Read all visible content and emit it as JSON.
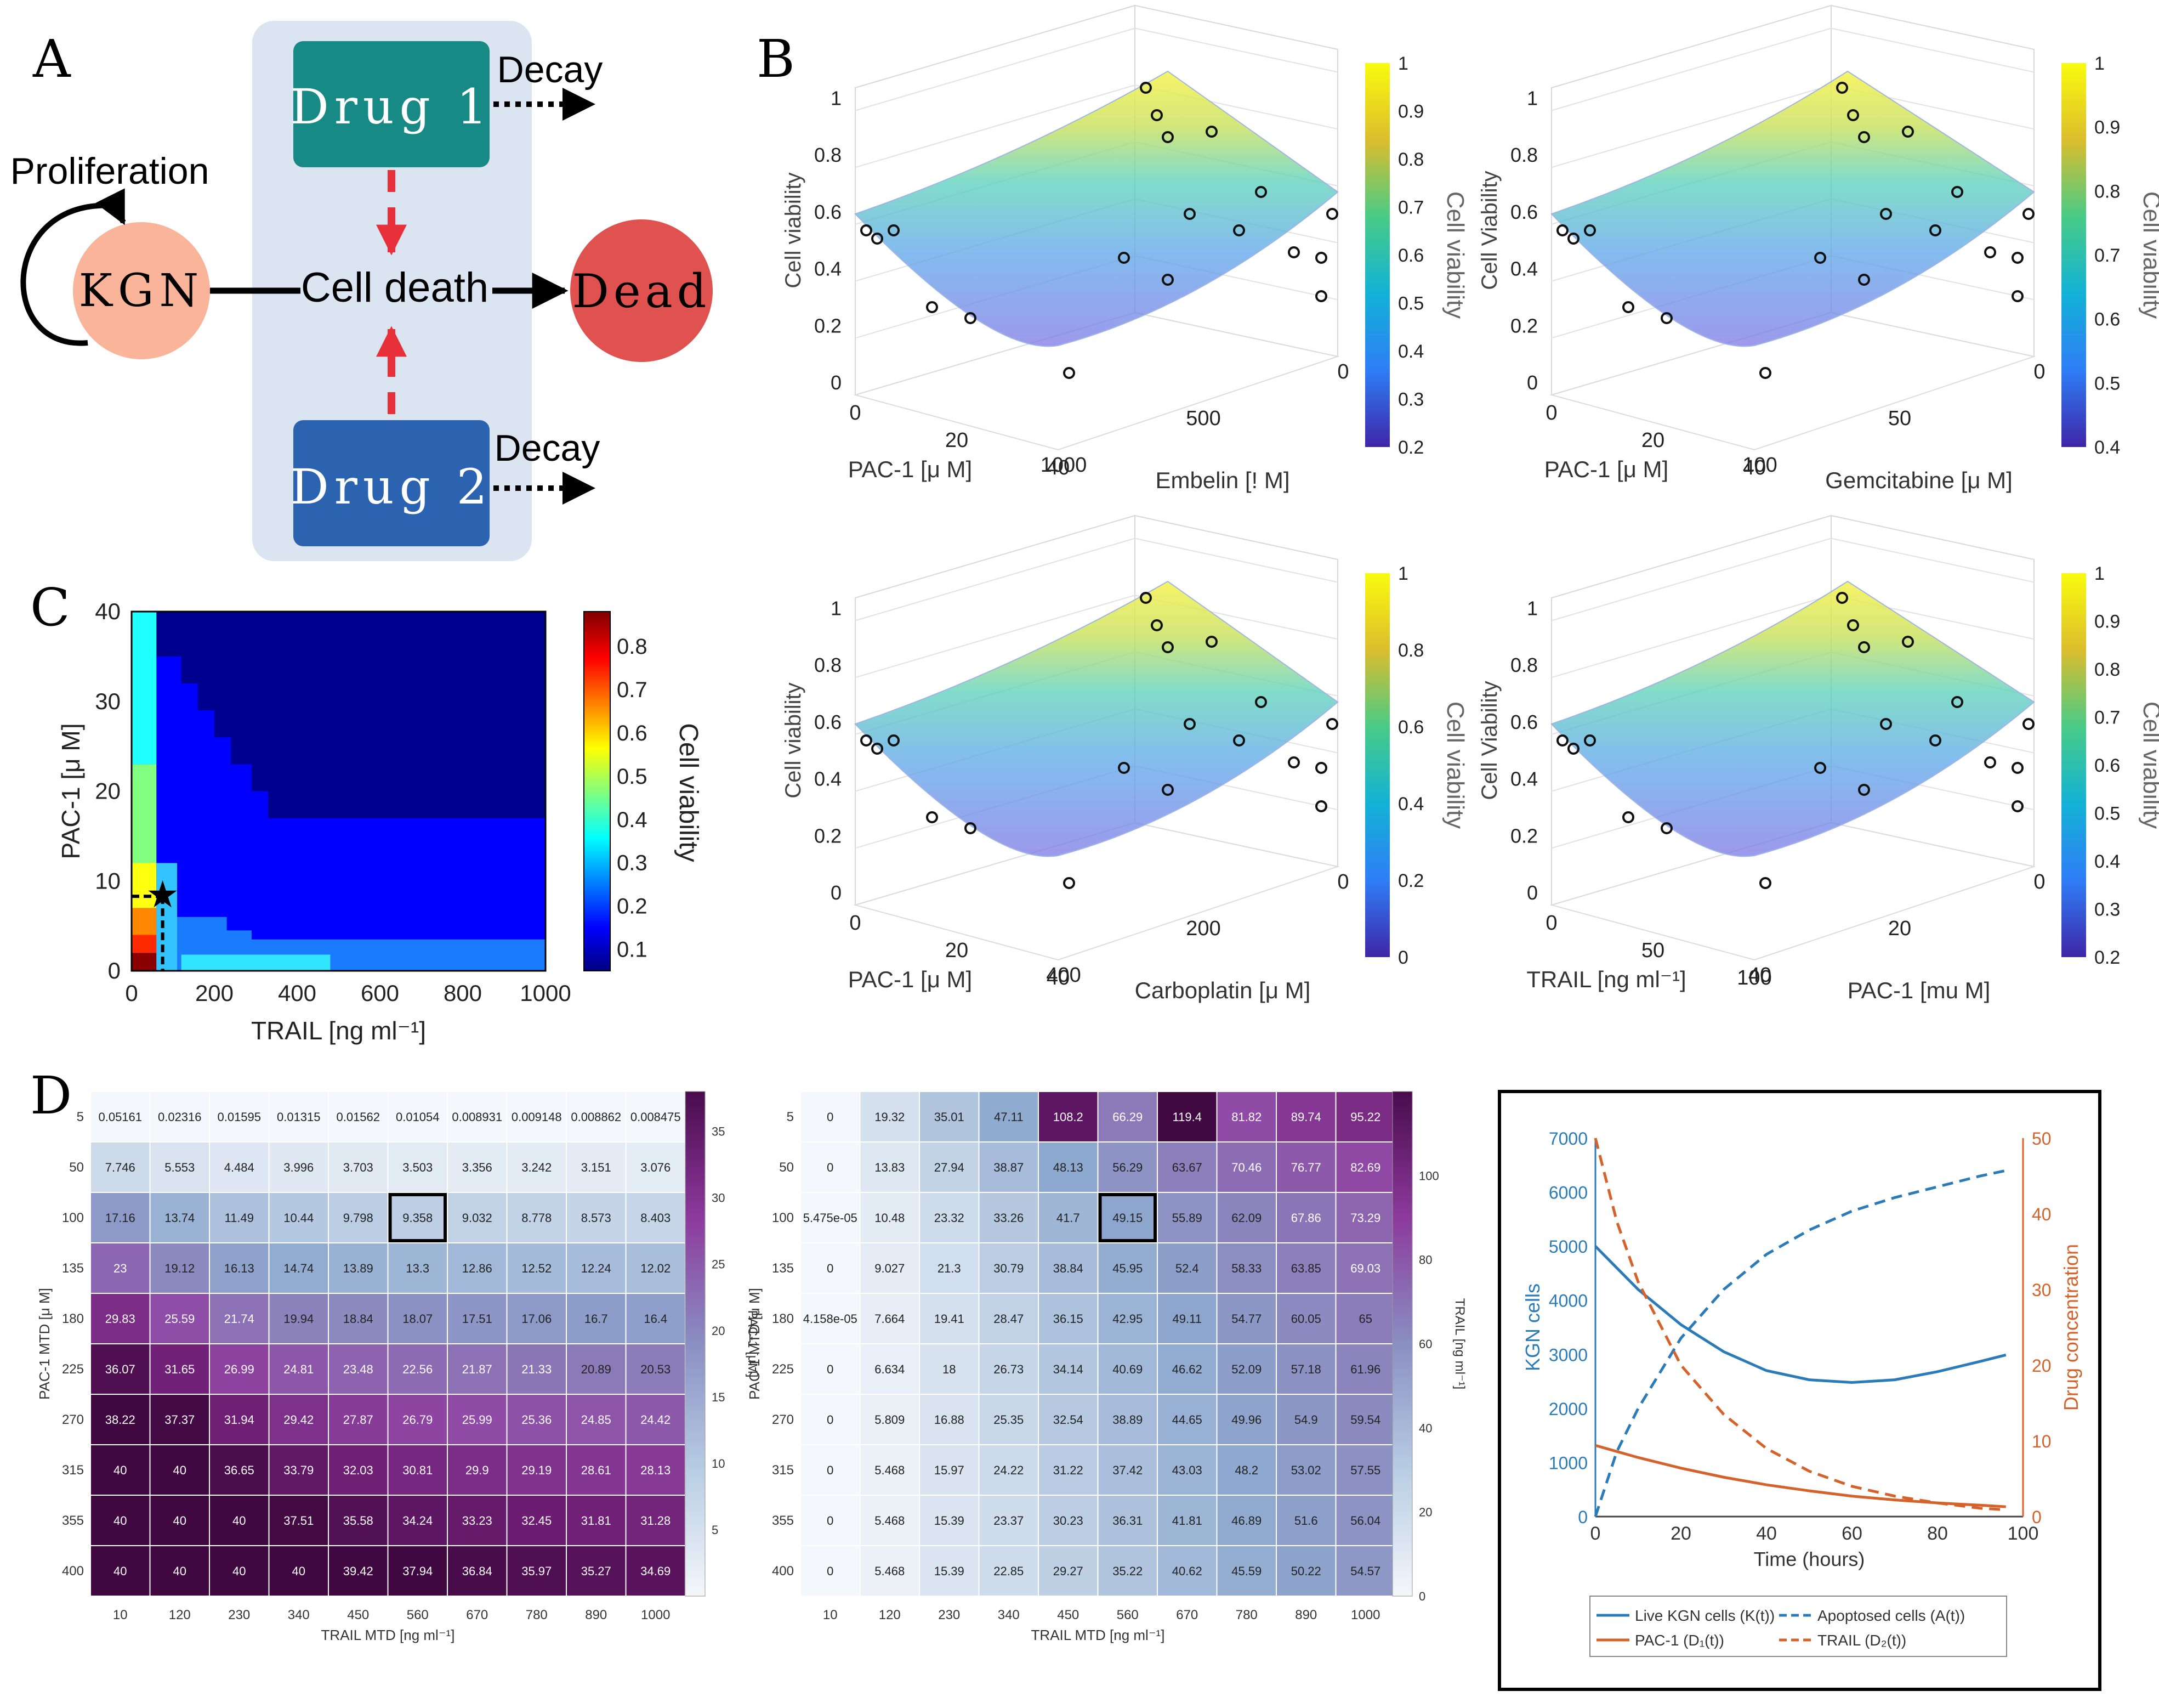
{
  "panel_letters": {
    "A": "A",
    "B": "B",
    "C": "C",
    "D": "D"
  },
  "diagram": {
    "nodes": {
      "kgn": "KGN",
      "dead": "Dead",
      "drug1": "Drug 1",
      "drug2": "Drug 2",
      "death": "Cell death"
    },
    "labels": {
      "proliferation": "Proliferation",
      "decay1": "Decay",
      "decay2": "Decay"
    },
    "colors": {
      "kgn": "#f9b49a",
      "dead": "#e0524f",
      "drug1": "#178a86",
      "drug2": "#2b63b0",
      "panel": "#dbe5f1",
      "inhibit": "#e8303a"
    }
  },
  "chart_data": [
    {
      "id": "B1",
      "type": "surface3d",
      "zlabel": "Cell viability",
      "xlabel": "PAC-1 [μ M]",
      "ylabel": "Embelin [! M]",
      "colorbar_label": "Cell viability",
      "xticks": [
        "0",
        "20",
        "40"
      ],
      "yticks": [
        "1000",
        "500",
        "0"
      ],
      "zticks": [
        "0",
        "0.2",
        "0.4",
        "0.6",
        "0.8",
        "1"
      ],
      "cbar_ticks": [
        "0.2",
        "0.3",
        "0.4",
        "0.5",
        "0.6",
        "0.7",
        "0.8",
        "0.9",
        "1"
      ]
    },
    {
      "id": "B2",
      "type": "surface3d",
      "zlabel": "Cell Viability",
      "xlabel": "PAC-1 [μ M]",
      "ylabel": "Gemcitabine [μ M]",
      "colorbar_label": "Cell viability",
      "xticks": [
        "0",
        "20",
        "40"
      ],
      "yticks": [
        "100",
        "50",
        "0"
      ],
      "zticks": [
        "0",
        "0.2",
        "0.4",
        "0.6",
        "0.8",
        "1"
      ],
      "cbar_ticks": [
        "0.4",
        "0.5",
        "0.6",
        "0.7",
        "0.8",
        "0.9",
        "1"
      ]
    },
    {
      "id": "B3",
      "type": "surface3d",
      "zlabel": "Cell viability",
      "xlabel": "PAC-1 [μ M]",
      "ylabel": "Carboplatin [μ M]",
      "colorbar_label": "Cell viability",
      "xticks": [
        "0",
        "20",
        "40"
      ],
      "yticks": [
        "400",
        "200",
        "0"
      ],
      "zticks": [
        "0",
        "0.2",
        "0.4",
        "0.6",
        "0.8",
        "1"
      ],
      "cbar_ticks": [
        "0",
        "0.2",
        "0.4",
        "0.6",
        "0.8",
        "1"
      ]
    },
    {
      "id": "B4",
      "type": "surface3d",
      "zlabel": "Cell Viability",
      "xlabel": "TRAIL [ng ml⁻¹]",
      "ylabel": "PAC-1 [mu M]",
      "colorbar_label": "Cell viability",
      "xticks": [
        "0",
        "50",
        "100"
      ],
      "yticks": [
        "40",
        "20",
        "0"
      ],
      "zticks": [
        "0",
        "0.2",
        "0.4",
        "0.6",
        "0.8",
        "1"
      ],
      "cbar_ticks": [
        "0.2",
        "0.3",
        "0.4",
        "0.5",
        "0.6",
        "0.7",
        "0.8",
        "0.9",
        "1"
      ]
    },
    {
      "id": "C",
      "type": "heatmap",
      "xlabel": "TRAIL [ng ml⁻¹]",
      "ylabel": "PAC-1 [μ M]",
      "colorbar_label": "Cell viability",
      "xlim": [
        0,
        1000
      ],
      "ylim": [
        0,
        40
      ],
      "xticks": [
        0,
        200,
        400,
        600,
        800,
        1000
      ],
      "yticks": [
        0,
        10,
        20,
        30,
        40
      ],
      "cbar_ticks": [
        0.1,
        0.2,
        0.3,
        0.4,
        0.5,
        0.6,
        0.7,
        0.8
      ],
      "optimum": {
        "trail": 75,
        "pac1": 8.3
      }
    },
    {
      "id": "D1",
      "type": "heatmap",
      "xlabel": "TRAIL MTD [ng ml⁻¹]",
      "ylabel": "PAC-1 MTD [μ M]",
      "colorbar_label": "PAC-1 [μM]",
      "x": [
        "10",
        "120",
        "230",
        "340",
        "450",
        "560",
        "670",
        "780",
        "890",
        "1000"
      ],
      "y": [
        "5",
        "50",
        "100",
        "135",
        "180",
        "225",
        "270",
        "315",
        "355",
        "400"
      ],
      "values": [
        [
          "0.05161",
          "0.02316",
          "0.01595",
          "0.01315",
          "0.01562",
          "0.01054",
          "0.008931",
          "0.009148",
          "0.008862",
          "0.008475"
        ],
        [
          "7.746",
          "5.553",
          "4.484",
          "3.996",
          "3.703",
          "3.503",
          "3.356",
          "3.242",
          "3.151",
          "3.076"
        ],
        [
          "17.16",
          "13.74",
          "11.49",
          "10.44",
          "9.798",
          "9.358",
          "9.032",
          "8.778",
          "8.573",
          "8.403"
        ],
        [
          "23",
          "19.12",
          "16.13",
          "14.74",
          "13.89",
          "13.3",
          "12.86",
          "12.52",
          "12.24",
          "12.02"
        ],
        [
          "29.83",
          "25.59",
          "21.74",
          "19.94",
          "18.84",
          "18.07",
          "17.51",
          "17.06",
          "16.7",
          "16.4"
        ],
        [
          "36.07",
          "31.65",
          "26.99",
          "24.81",
          "23.48",
          "22.56",
          "21.87",
          "21.33",
          "20.89",
          "20.53"
        ],
        [
          "38.22",
          "37.37",
          "31.94",
          "29.42",
          "27.87",
          "26.79",
          "25.99",
          "25.36",
          "24.85",
          "24.42"
        ],
        [
          "40",
          "40",
          "36.65",
          "33.79",
          "32.03",
          "30.81",
          "29.9",
          "29.19",
          "28.61",
          "28.13"
        ],
        [
          "40",
          "40",
          "40",
          "37.51",
          "35.58",
          "34.24",
          "33.23",
          "32.45",
          "31.81",
          "31.28"
        ],
        [
          "40",
          "40",
          "40",
          "40",
          "39.42",
          "37.94",
          "36.84",
          "35.97",
          "35.27",
          "34.69"
        ]
      ],
      "vmin": 0,
      "vmax": 38,
      "highlight": {
        "row": 2,
        "col": 5
      },
      "cbar_ticks": [
        "5",
        "10",
        "15",
        "20",
        "25",
        "30",
        "35"
      ]
    },
    {
      "id": "D2",
      "type": "heatmap",
      "xlabel": "TRAIL MTD [ng ml⁻¹]",
      "ylabel": "PAC-1 MTD [μ M]",
      "colorbar_label": "TRAIL [ng ml⁻¹]",
      "x": [
        "10",
        "120",
        "230",
        "340",
        "450",
        "560",
        "670",
        "780",
        "890",
        "1000"
      ],
      "y": [
        "5",
        "50",
        "100",
        "135",
        "180",
        "225",
        "270",
        "315",
        "355",
        "400"
      ],
      "values": [
        [
          "0",
          "19.32",
          "35.01",
          "47.11",
          "108.2",
          "66.29",
          "119.4",
          "81.82",
          "89.74",
          "95.22"
        ],
        [
          "0",
          "13.83",
          "27.94",
          "38.87",
          "48.13",
          "56.29",
          "63.67",
          "70.46",
          "76.77",
          "82.69"
        ],
        [
          "5.475e-05",
          "10.48",
          "23.32",
          "33.26",
          "41.7",
          "49.15",
          "55.89",
          "62.09",
          "67.86",
          "73.29"
        ],
        [
          "0",
          "9.027",
          "21.3",
          "30.79",
          "38.84",
          "45.95",
          "52.4",
          "58.33",
          "63.85",
          "69.03"
        ],
        [
          "4.158e-05",
          "7.664",
          "19.41",
          "28.47",
          "36.15",
          "42.95",
          "49.11",
          "54.77",
          "60.05",
          "65"
        ],
        [
          "0",
          "6.634",
          "18",
          "26.73",
          "34.14",
          "40.69",
          "46.62",
          "52.09",
          "57.18",
          "61.96"
        ],
        [
          "0",
          "5.809",
          "16.88",
          "25.35",
          "32.54",
          "38.89",
          "44.65",
          "49.96",
          "54.9",
          "59.54"
        ],
        [
          "0",
          "5.468",
          "15.97",
          "24.22",
          "31.22",
          "37.42",
          "43.03",
          "48.2",
          "53.02",
          "57.55"
        ],
        [
          "0",
          "5.468",
          "15.39",
          "23.37",
          "30.23",
          "36.31",
          "41.81",
          "46.89",
          "51.6",
          "56.04"
        ],
        [
          "0",
          "5.468",
          "15.39",
          "22.85",
          "29.27",
          "35.22",
          "40.62",
          "45.59",
          "50.22",
          "54.57"
        ]
      ],
      "vmin": 0,
      "vmax": 120,
      "highlight": {
        "row": 2,
        "col": 5
      },
      "cbar_ticks": [
        "0",
        "20",
        "40",
        "60",
        "80",
        "100"
      ]
    },
    {
      "id": "D3",
      "type": "line",
      "xlabel": "Time (hours)",
      "ylabel": "KGN cells",
      "y2label": "Drug concentration",
      "xlim": [
        0,
        100
      ],
      "ylim": [
        0,
        7000
      ],
      "y2lim": [
        0,
        50
      ],
      "xticks": [
        0,
        20,
        40,
        60,
        80,
        100
      ],
      "yticks": [
        0,
        1000,
        2000,
        3000,
        4000,
        5000,
        6000,
        7000
      ],
      "y2ticks": [
        0,
        10,
        20,
        30,
        40,
        50
      ],
      "colors": {
        "cells": "#2b7bb9",
        "drug": "#d4622a"
      },
      "legend": [
        "Live KGN cells (K(t))",
        "Apoptosed cells (A(t))",
        "PAC-1 (D₁(t))",
        "TRAIL (D₂(t))"
      ],
      "series": [
        {
          "name": "Live KGN cells (K(t))",
          "axis": "left",
          "style": "solid",
          "x": [
            0,
            10,
            20,
            30,
            40,
            50,
            60,
            70,
            80,
            90,
            96
          ],
          "y": [
            5000,
            4200,
            3550,
            3050,
            2700,
            2530,
            2480,
            2530,
            2680,
            2870,
            2990
          ]
        },
        {
          "name": "Apoptosed cells (A(t))",
          "axis": "left",
          "style": "dashed",
          "x": [
            0,
            5,
            10,
            20,
            30,
            40,
            50,
            60,
            70,
            80,
            90,
            96
          ],
          "y": [
            0,
            1200,
            2000,
            3300,
            4200,
            4850,
            5300,
            5650,
            5900,
            6100,
            6300,
            6400
          ]
        },
        {
          "name": "PAC-1 (D₁(t))",
          "axis": "right",
          "style": "solid",
          "x": [
            0,
            10,
            20,
            30,
            40,
            50,
            60,
            70,
            80,
            90,
            96
          ],
          "y": [
            9.4,
            7.8,
            6.4,
            5.2,
            4.2,
            3.4,
            2.7,
            2.2,
            1.8,
            1.5,
            1.3
          ]
        },
        {
          "name": "TRAIL (D₂(t))",
          "axis": "right",
          "style": "dashed",
          "x": [
            0,
            5,
            10,
            20,
            30,
            40,
            50,
            60,
            70,
            80,
            90,
            96
          ],
          "y": [
            50,
            39,
            31,
            20,
            13.5,
            9,
            6,
            4,
            2.7,
            1.8,
            1.1,
            0.9
          ]
        }
      ]
    }
  ]
}
